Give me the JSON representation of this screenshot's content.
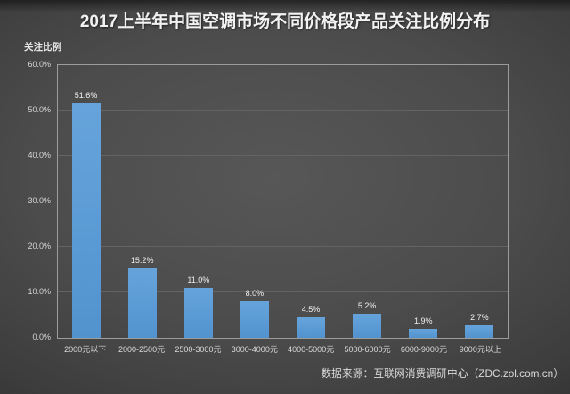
{
  "title": "2017上半年中国空调市场不同价格段产品关注比例分布",
  "y_axis_title": "关注比例",
  "source": "数据来源：互联网消费调研中心（ZDC.zol.com.cn）",
  "colors": {
    "bar": "#5b9bd5",
    "background": "#4c4c4c",
    "title_text": "#f2f2f2"
  },
  "chart_data": {
    "type": "bar",
    "categories": [
      "2000元以下",
      "2000-2500元",
      "2500-3000元",
      "3000-4000元",
      "4000-5000元",
      "5000-6000元",
      "6000-9000元",
      "9000元以上"
    ],
    "values": [
      51.6,
      15.2,
      11.0,
      8.0,
      4.5,
      5.2,
      1.9,
      2.7
    ],
    "value_labels": [
      "51.6%",
      "15.2%",
      "11.0%",
      "8.0%",
      "4.5%",
      "5.2%",
      "1.9%",
      "2.7%"
    ],
    "title": "2017上半年中国空调市场不同价格段产品关注比例分布",
    "xlabel": "",
    "ylabel": "关注比例",
    "ylim": [
      0,
      60
    ],
    "y_tick_labels": [
      "0.0%",
      "10.0%",
      "20.0%",
      "30.0%",
      "40.0%",
      "50.0%",
      "60.0%"
    ],
    "grid": true,
    "legend": false
  }
}
